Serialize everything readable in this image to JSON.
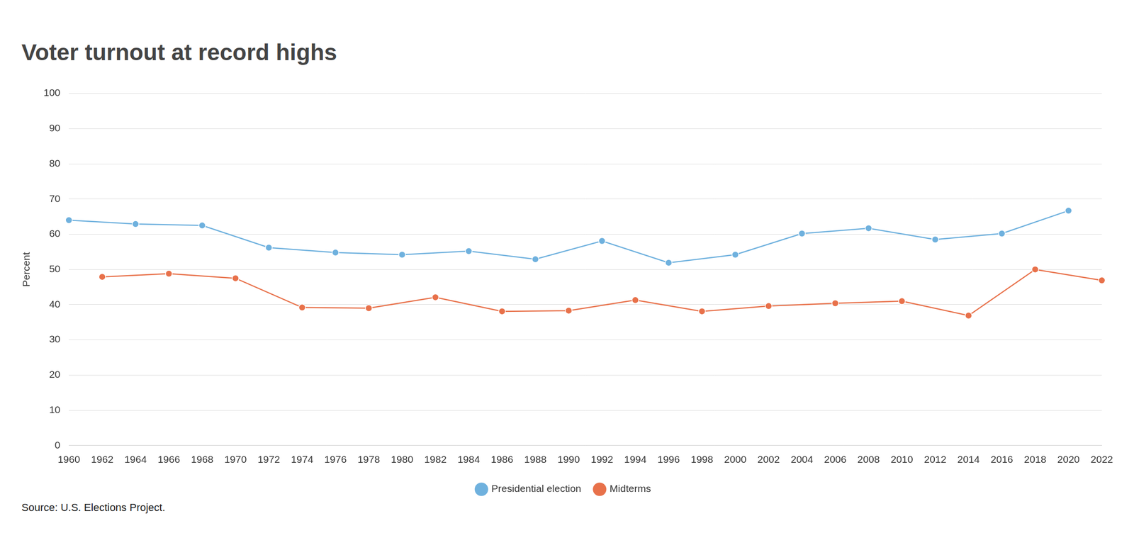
{
  "chart_data": {
    "type": "line",
    "title": "Voter turnout at record highs",
    "y_label": "Percent",
    "source": "Source: U.S. Elections Project.",
    "categories": [
      "1960",
      "1962",
      "1964",
      "1966",
      "1968",
      "1970",
      "1972",
      "1974",
      "1976",
      "1978",
      "1980",
      "1982",
      "1984",
      "1986",
      "1988",
      "1990",
      "1992",
      "1994",
      "1996",
      "1998",
      "2000",
      "2002",
      "2004",
      "2006",
      "2008",
      "2010",
      "2012",
      "2014",
      "2016",
      "2018",
      "2020",
      "2022"
    ],
    "series": [
      {
        "name": "Presidential election",
        "color": "#6fb1de",
        "marker": "circle",
        "values": [
          64.0,
          null,
          62.9,
          null,
          62.5,
          null,
          56.2,
          null,
          54.8,
          null,
          54.2,
          null,
          55.2,
          null,
          52.9,
          null,
          58.1,
          null,
          51.9,
          null,
          54.2,
          null,
          60.2,
          null,
          61.7,
          null,
          58.5,
          null,
          60.2,
          null,
          66.7,
          null
        ]
      },
      {
        "name": "Midterms",
        "color": "#e8714a",
        "marker": "circle",
        "values": [
          null,
          47.9,
          null,
          48.8,
          null,
          47.5,
          null,
          39.2,
          null,
          39.0,
          null,
          42.1,
          null,
          38.1,
          null,
          38.3,
          null,
          41.3,
          null,
          38.1,
          null,
          39.6,
          null,
          40.4,
          null,
          41.0,
          null,
          36.9,
          null,
          50.0,
          null,
          46.9
        ]
      }
    ],
    "ylim": [
      0,
      100
    ],
    "yticks": [
      0,
      10,
      20,
      30,
      40,
      50,
      60,
      70,
      80,
      90,
      100
    ],
    "grid": true,
    "legend": "bottom"
  }
}
